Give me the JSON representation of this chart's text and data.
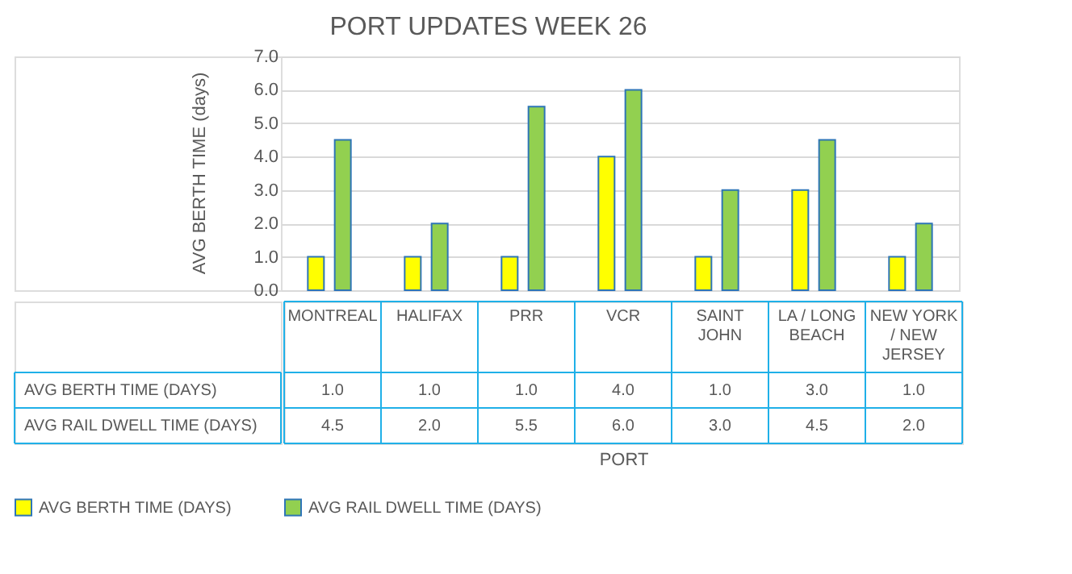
{
  "chart_data": {
    "type": "bar",
    "title": "PORT UPDATES WEEK 26",
    "xlabel": "PORT",
    "ylabel": "AVG BERTH TIME (days)",
    "categories": [
      "MONTREAL",
      "HALIFAX",
      "PRR",
      "VCR",
      "SAINT JOHN",
      "LA / LONG BEACH",
      "NEW YORK / NEW JERSEY"
    ],
    "series": [
      {
        "name": "AVG BERTH TIME (DAYS)",
        "color": "#ffff00",
        "values": [
          1.0,
          1.0,
          1.0,
          4.0,
          1.0,
          3.0,
          1.0
        ],
        "value_labels": [
          "1.0",
          "1.0",
          "1.0",
          "4.0",
          "1.0",
          "3.0",
          "1.0"
        ]
      },
      {
        "name": "AVG RAIL DWELL TIME (DAYS)",
        "color": "#92d050",
        "values": [
          4.5,
          2.0,
          5.5,
          6.0,
          3.0,
          4.5,
          2.0
        ],
        "value_labels": [
          "4.5",
          "2.0",
          "5.5",
          "6.0",
          "3.0",
          "4.5",
          "2.0"
        ]
      }
    ],
    "ylim": [
      0,
      7
    ],
    "yticks": [
      {
        "value": 0,
        "label": "0.0"
      },
      {
        "value": 1,
        "label": "1.0"
      },
      {
        "value": 2,
        "label": "2.0"
      },
      {
        "value": 3,
        "label": "3.0"
      },
      {
        "value": 4,
        "label": "4.0"
      },
      {
        "value": 5,
        "label": "5.0"
      },
      {
        "value": 6,
        "label": "6.0"
      },
      {
        "value": 7,
        "label": "7.0"
      }
    ],
    "grid": "y",
    "legend": "bottom"
  }
}
